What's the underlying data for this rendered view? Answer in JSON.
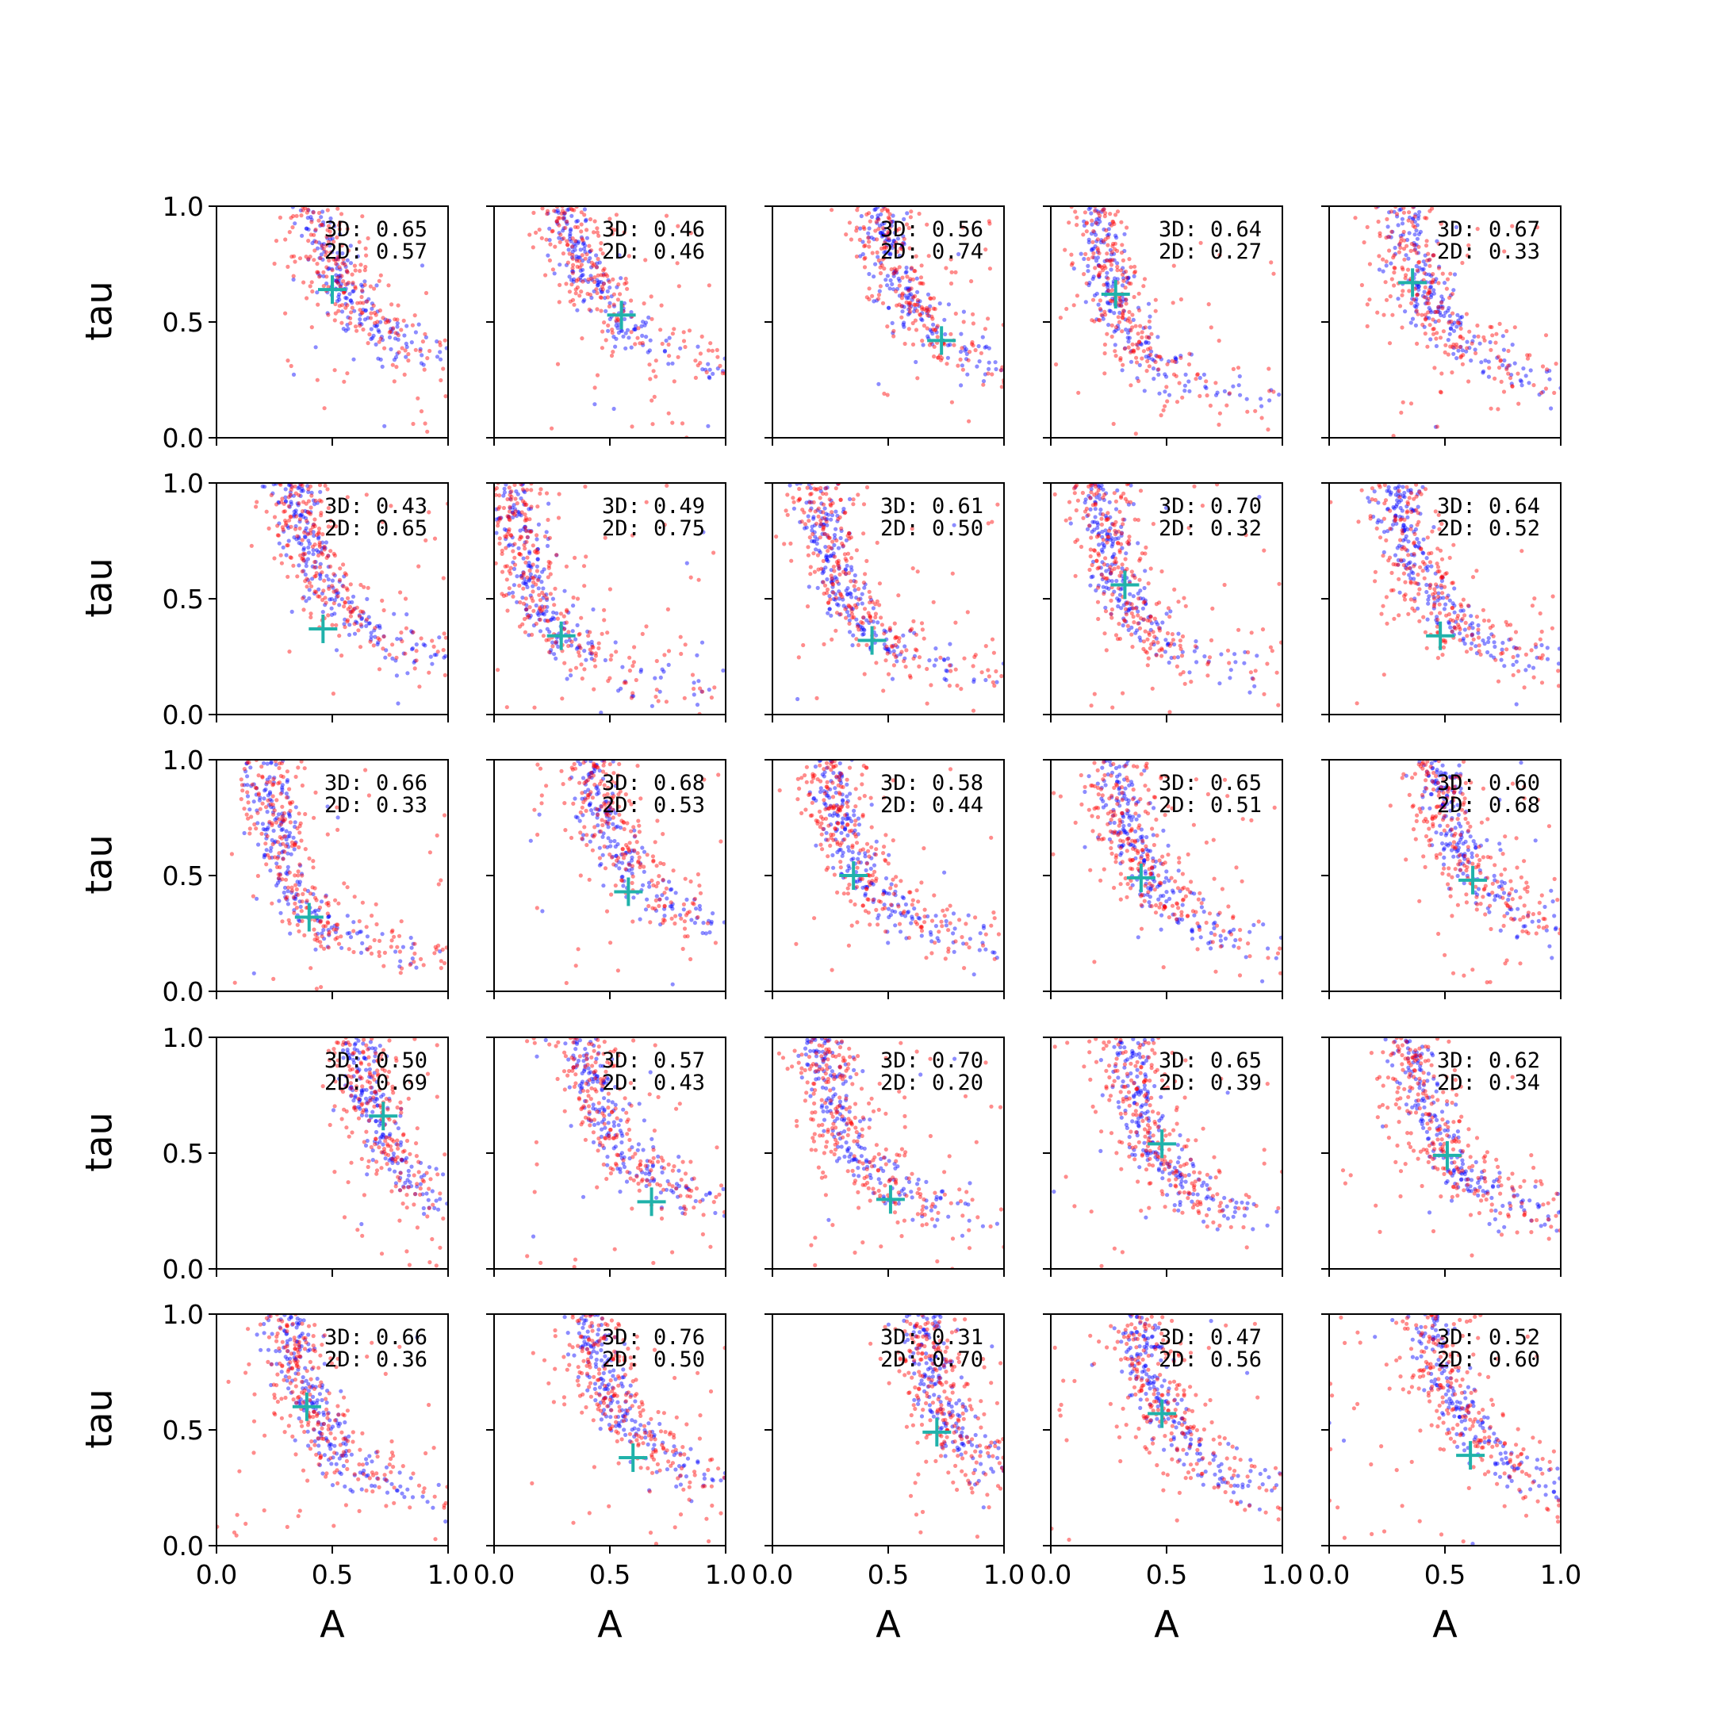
{
  "colors": {
    "series_3d": "#0000ff",
    "series_2d": "#ff0000",
    "marker": "#20b2aa"
  },
  "chart_data": {
    "type": "scatter",
    "layout": "5x5 grid of scatter subplots, shared axes",
    "xlabel": "A",
    "ylabel": "tau",
    "xlim": [
      0,
      1
    ],
    "ylim": [
      0,
      1
    ],
    "xticks": [
      "0.0",
      "0.5",
      "1.0"
    ],
    "yticks": [
      "0.0",
      "0.5",
      "1.0"
    ],
    "grid": false,
    "point_series": [
      {
        "name": "",
        "color": "#0000ff",
        "note": "blue scatter points, alpha ~0.5"
      },
      {
        "name": "",
        "color": "#ff0000",
        "note": "red scatter points, alpha ~0.5"
      }
    ],
    "panels": [
      {
        "row": 0,
        "col": 0,
        "annot_3d": "3D: 0.65",
        "annot_2d": "2D: 0.57",
        "marker": [
          0.5,
          0.64
        ],
        "trend": {
          "a0": 0.22,
          "ra": 0.18,
          "b": 0.1,
          "aLo": 0.25,
          "aHi": 0.95
        }
      },
      {
        "row": 0,
        "col": 1,
        "annot_3d": "3D: 0.46",
        "annot_2d": "2D: 0.46",
        "marker": [
          0.55,
          0.53
        ],
        "trend": {
          "a0": 0.1,
          "ra": 0.18,
          "b": 0.1,
          "aLo": 0.22,
          "aHi": 1.0
        }
      },
      {
        "row": 0,
        "col": 2,
        "annot_3d": "3D: 0.56",
        "annot_2d": "2D: 0.74",
        "marker": [
          0.73,
          0.42
        ],
        "trend": {
          "a0": 0.3,
          "ra": 0.14,
          "b": 0.1,
          "aLo": 0.45,
          "aHi": 1.0
        }
      },
      {
        "row": 0,
        "col": 3,
        "annot_3d": "3D: 0.64",
        "annot_2d": "2D: 0.27",
        "marker": [
          0.28,
          0.62
        ],
        "trend": {
          "a0": 0.1,
          "ra": 0.1,
          "b": 0.04,
          "aLo": 0.0,
          "aHi": 1.0
        }
      },
      {
        "row": 0,
        "col": 4,
        "annot_3d": "3D: 0.67",
        "annot_2d": "2D: 0.33",
        "marker": [
          0.36,
          0.67
        ],
        "trend": {
          "a0": 0.15,
          "ra": 0.15,
          "b": 0.05,
          "aLo": 0.15,
          "aHi": 0.95
        }
      },
      {
        "row": 1,
        "col": 0,
        "annot_3d": "3D: 0.43",
        "annot_2d": "2D: 0.65",
        "marker": [
          0.46,
          0.37
        ],
        "trend": {
          "a0": 0.18,
          "ra": 0.14,
          "b": 0.08,
          "aLo": 0.25,
          "aHi": 1.0
        }
      },
      {
        "row": 1,
        "col": 1,
        "annot_3d": "3D: 0.49",
        "annot_2d": "2D: 0.75",
        "marker": [
          0.29,
          0.34
        ],
        "trend": {
          "a0": -0.05,
          "ra": 0.12,
          "b": 0.0,
          "aLo": 0.0,
          "aHi": 1.0
        }
      },
      {
        "row": 1,
        "col": 2,
        "annot_3d": "3D: 0.61",
        "annot_2d": "2D: 0.50",
        "marker": [
          0.43,
          0.32
        ],
        "trend": {
          "a0": 0.1,
          "ra": 0.1,
          "b": 0.05,
          "aLo": 0.1,
          "aHi": 1.0
        }
      },
      {
        "row": 1,
        "col": 3,
        "annot_3d": "3D: 0.70",
        "annot_2d": "2D: 0.32",
        "marker": [
          0.32,
          0.56
        ],
        "trend": {
          "a0": 0.1,
          "ra": 0.1,
          "b": 0.05,
          "aLo": 0.05,
          "aHi": 1.0
        }
      },
      {
        "row": 1,
        "col": 4,
        "annot_3d": "3D: 0.64",
        "annot_2d": "2D: 0.52",
        "marker": [
          0.48,
          0.34
        ],
        "trend": {
          "a0": 0.16,
          "ra": 0.12,
          "b": 0.08,
          "aLo": 0.0,
          "aHi": 1.0
        }
      },
      {
        "row": 2,
        "col": 0,
        "annot_3d": "3D: 0.66",
        "annot_2d": "2D: 0.33",
        "marker": [
          0.4,
          0.32
        ],
        "trend": {
          "a0": 0.13,
          "ra": 0.08,
          "b": 0.05,
          "aLo": 0.0,
          "aHi": 1.0
        }
      },
      {
        "row": 2,
        "col": 1,
        "annot_3d": "3D: 0.68",
        "annot_2d": "2D: 0.53",
        "marker": [
          0.58,
          0.43
        ],
        "trend": {
          "a0": 0.25,
          "ra": 0.14,
          "b": 0.1,
          "aLo": 0.15,
          "aHi": 1.0
        }
      },
      {
        "row": 2,
        "col": 2,
        "annot_3d": "3D: 0.58",
        "annot_2d": "2D: 0.44",
        "marker": [
          0.35,
          0.5
        ],
        "trend": {
          "a0": 0.12,
          "ra": 0.12,
          "b": 0.05,
          "aLo": 0.0,
          "aHi": 1.0
        }
      },
      {
        "row": 2,
        "col": 3,
        "annot_3d": "3D: 0.65",
        "annot_2d": "2D: 0.51",
        "marker": [
          0.39,
          0.49
        ],
        "trend": {
          "a0": 0.15,
          "ra": 0.12,
          "b": 0.05,
          "aLo": 0.0,
          "aHi": 1.0
        }
      },
      {
        "row": 2,
        "col": 4,
        "annot_3d": "3D: 0.60",
        "annot_2d": "2D: 0.68",
        "marker": [
          0.62,
          0.48
        ],
        "trend": {
          "a0": 0.3,
          "ra": 0.14,
          "b": 0.08,
          "aLo": 0.3,
          "aHi": 1.0
        }
      },
      {
        "row": 3,
        "col": 0,
        "annot_3d": "3D: 0.50",
        "annot_2d": "2D: 0.69",
        "marker": [
          0.72,
          0.66
        ],
        "trend": {
          "a0": 0.5,
          "ra": 0.1,
          "b": 0.1,
          "aLo": 0.5,
          "aHi": 1.0
        }
      },
      {
        "row": 3,
        "col": 1,
        "annot_3d": "3D: 0.57",
        "annot_2d": "2D: 0.43",
        "marker": [
          0.68,
          0.29
        ],
        "trend": {
          "a0": 0.22,
          "ra": 0.14,
          "b": 0.1,
          "aLo": 0.1,
          "aHi": 1.0
        }
      },
      {
        "row": 3,
        "col": 2,
        "annot_3d": "3D: 0.70",
        "annot_2d": "2D: 0.20",
        "marker": [
          0.51,
          0.3
        ],
        "trend": {
          "a0": 0.08,
          "ra": 0.12,
          "b": 0.07,
          "aLo": 0.15,
          "aHi": 1.0
        }
      },
      {
        "row": 3,
        "col": 3,
        "annot_3d": "3D: 0.65",
        "annot_2d": "2D: 0.39",
        "marker": [
          0.48,
          0.54
        ],
        "trend": {
          "a0": 0.22,
          "ra": 0.1,
          "b": 0.08,
          "aLo": 0.0,
          "aHi": 1.0
        }
      },
      {
        "row": 3,
        "col": 4,
        "annot_3d": "3D: 0.62",
        "annot_2d": "2D: 0.34",
        "marker": [
          0.51,
          0.49
        ],
        "trend": {
          "a0": 0.22,
          "ra": 0.12,
          "b": 0.07,
          "aLo": 0.0,
          "aHi": 1.0
        }
      },
      {
        "row": 4,
        "col": 0,
        "annot_3d": "3D: 0.66",
        "annot_2d": "2D: 0.36",
        "marker": [
          0.39,
          0.6
        ],
        "trend": {
          "a0": 0.18,
          "ra": 0.12,
          "b": 0.05,
          "aLo": 0.0,
          "aHi": 1.0
        }
      },
      {
        "row": 4,
        "col": 1,
        "annot_3d": "3D: 0.76",
        "annot_2d": "2D: 0.50",
        "marker": [
          0.6,
          0.38
        ],
        "trend": {
          "a0": 0.25,
          "ra": 0.14,
          "b": 0.1,
          "aLo": 0.15,
          "aHi": 1.0
        }
      },
      {
        "row": 4,
        "col": 2,
        "annot_3d": "3D: 0.31",
        "annot_2d": "2D: 0.70",
        "marker": [
          0.71,
          0.49
        ],
        "trend": {
          "a0": 0.55,
          "ra": 0.08,
          "b": 0.15,
          "aLo": 0.55,
          "aHi": 1.0
        }
      },
      {
        "row": 4,
        "col": 3,
        "annot_3d": "3D: 0.47",
        "annot_2d": "2D: 0.56",
        "marker": [
          0.48,
          0.57
        ],
        "trend": {
          "a0": 0.22,
          "ra": 0.14,
          "b": 0.06,
          "aLo": 0.0,
          "aHi": 1.0
        }
      },
      {
        "row": 4,
        "col": 4,
        "annot_3d": "3D: 0.52",
        "annot_2d": "2D: 0.60",
        "marker": [
          0.61,
          0.39
        ],
        "trend": {
          "a0": 0.28,
          "ra": 0.14,
          "b": 0.07,
          "aLo": 0.0,
          "aHi": 1.0
        }
      }
    ]
  }
}
